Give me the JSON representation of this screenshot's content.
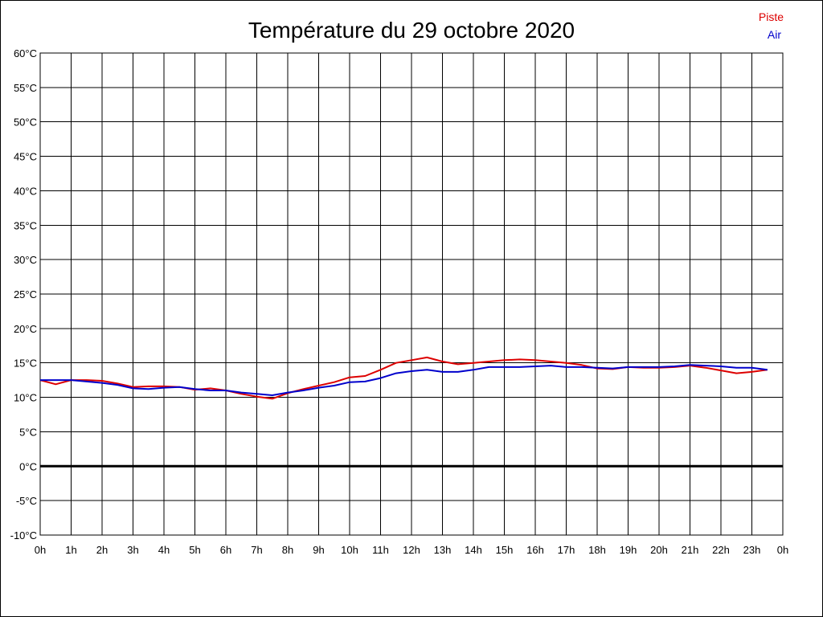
{
  "chart_data": {
    "type": "line",
    "title": "Température du 29 octobre 2020",
    "xlabel": "",
    "ylabel": "",
    "x_ticks": [
      "0h",
      "1h",
      "2h",
      "3h",
      "4h",
      "5h",
      "6h",
      "7h",
      "8h",
      "9h",
      "10h",
      "11h",
      "12h",
      "13h",
      "14h",
      "15h",
      "16h",
      "17h",
      "18h",
      "19h",
      "20h",
      "21h",
      "22h",
      "23h",
      "0h"
    ],
    "y_ticks": [
      "60°C",
      "55°C",
      "50°C",
      "45°C",
      "40°C",
      "35°C",
      "30°C",
      "25°C",
      "20°C",
      "15°C",
      "10°C",
      "5°C",
      "0°C",
      "-5°C",
      "-10°C"
    ],
    "xlim": [
      0,
      24
    ],
    "ylim": [
      -10,
      60
    ],
    "grid": true,
    "legend_position": "top-right",
    "series": [
      {
        "name": "Piste",
        "color": "#dd0000",
        "x": [
          0,
          0.5,
          1,
          1.5,
          2,
          2.5,
          3,
          3.5,
          4,
          4.5,
          5,
          5.5,
          6,
          6.5,
          7,
          7.5,
          8,
          8.5,
          9,
          9.5,
          10,
          10.5,
          11,
          11.5,
          12,
          12.5,
          13,
          13.5,
          14,
          14.5,
          15,
          15.5,
          16,
          16.5,
          17,
          17.5,
          18,
          18.5,
          19,
          19.5,
          20,
          20.5,
          21,
          21.5,
          22,
          22.5,
          23,
          23.5
        ],
        "values": [
          12.5,
          11.9,
          12.5,
          12.5,
          12.4,
          12.0,
          11.5,
          11.6,
          11.6,
          11.5,
          11.1,
          11.3,
          11.0,
          10.5,
          10.1,
          9.8,
          10.6,
          11.2,
          11.7,
          12.2,
          12.9,
          13.1,
          14.0,
          15.0,
          15.4,
          15.8,
          15.2,
          14.8,
          15.0,
          15.2,
          15.4,
          15.5,
          15.4,
          15.2,
          15.0,
          14.7,
          14.2,
          14.1,
          14.4,
          14.3,
          14.3,
          14.4,
          14.6,
          14.3,
          13.9,
          13.5,
          13.7,
          14.0
        ]
      },
      {
        "name": "Air",
        "color": "#0000cc",
        "x": [
          0,
          0.5,
          1,
          1.5,
          2,
          2.5,
          3,
          3.5,
          4,
          4.5,
          5,
          5.5,
          6,
          6.5,
          7,
          7.5,
          8,
          8.5,
          9,
          9.5,
          10,
          10.5,
          11,
          11.5,
          12,
          12.5,
          13,
          13.5,
          14,
          14.5,
          15,
          15.5,
          16,
          16.5,
          17,
          17.5,
          18,
          18.5,
          19,
          19.5,
          20,
          20.5,
          21,
          21.5,
          22,
          22.5,
          23,
          23.5
        ],
        "values": [
          12.5,
          12.5,
          12.5,
          12.3,
          12.1,
          11.8,
          11.3,
          11.2,
          11.4,
          11.5,
          11.2,
          11.0,
          11.0,
          10.7,
          10.5,
          10.3,
          10.7,
          11.0,
          11.4,
          11.7,
          12.2,
          12.3,
          12.8,
          13.5,
          13.8,
          14.0,
          13.7,
          13.7,
          14.0,
          14.4,
          14.4,
          14.4,
          14.5,
          14.6,
          14.4,
          14.4,
          14.3,
          14.2,
          14.4,
          14.4,
          14.4,
          14.5,
          14.7,
          14.6,
          14.5,
          14.3,
          14.3,
          14.0
        ]
      }
    ]
  }
}
